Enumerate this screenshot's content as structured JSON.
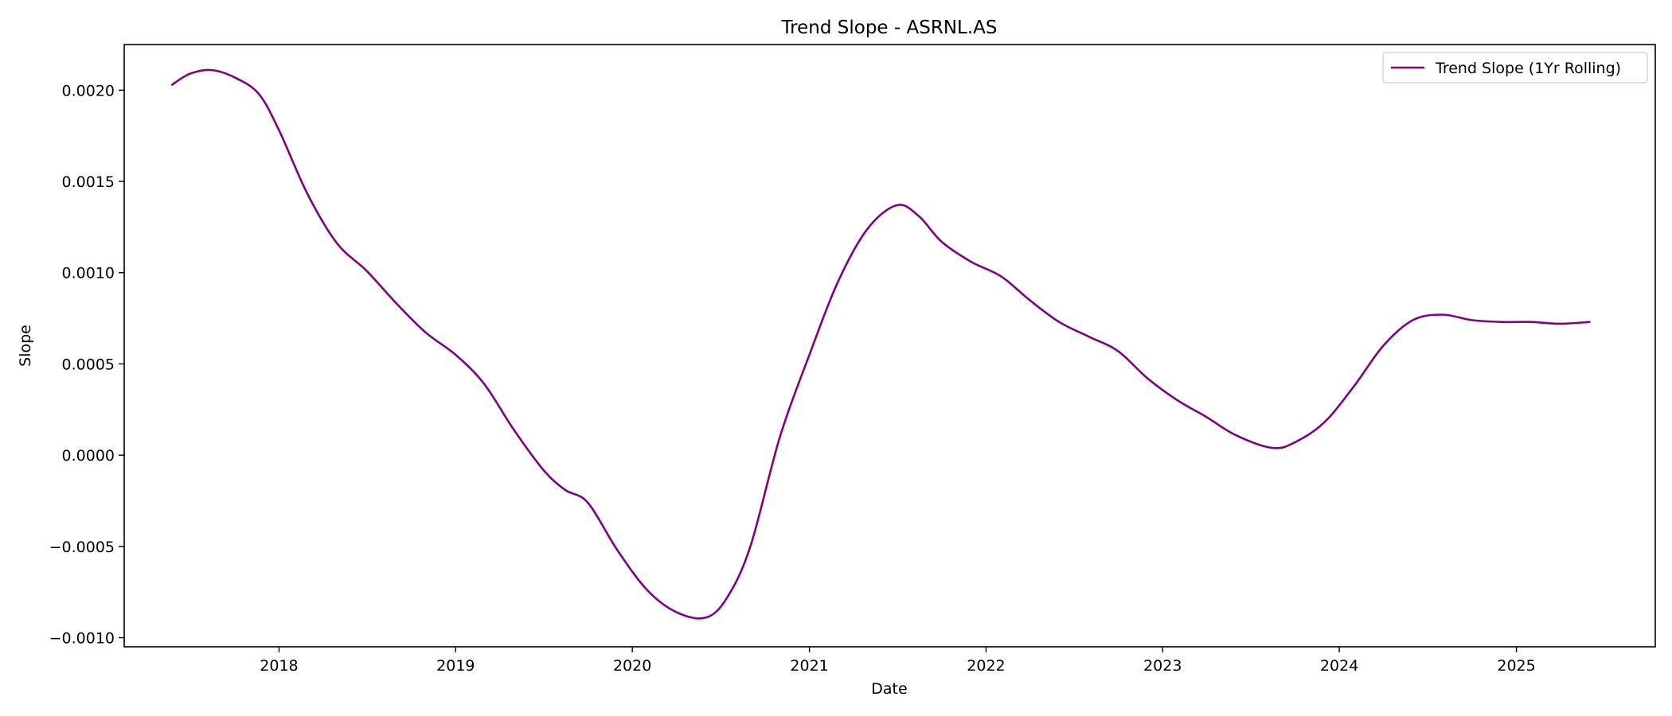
{
  "chart_data": {
    "type": "line",
    "title": "Trend Slope - ASRNL.AS",
    "xlabel": "Date",
    "ylabel": "Slope",
    "x_type": "date",
    "xlim": [
      "2017-02-15",
      "2025-10-15"
    ],
    "ylim": [
      -0.00105,
      0.00225
    ],
    "x_ticks": [
      "2018",
      "2019",
      "2020",
      "2021",
      "2022",
      "2023",
      "2024",
      "2025"
    ],
    "y_ticks": [
      "0.0020",
      "0.0015",
      "0.0010",
      "0.0005",
      "0.0000",
      "−0.0005",
      "−0.0010"
    ],
    "y_tick_values": [
      0.002,
      0.0015,
      0.001,
      0.0005,
      0.0,
      -0.0005,
      -0.001
    ],
    "grid": false,
    "legend_position": "top-right",
    "series": [
      {
        "name": "Trend Slope (1Yr Rolling)",
        "color": "#800080",
        "points": [
          [
            "2017-05-25",
            0.00203
          ],
          [
            "2017-07-01",
            0.00209
          ],
          [
            "2017-08-15",
            0.00211
          ],
          [
            "2017-10-01",
            0.00207
          ],
          [
            "2017-11-20",
            0.00198
          ],
          [
            "2018-01-01",
            0.00178
          ],
          [
            "2018-03-01",
            0.00143
          ],
          [
            "2018-05-01",
            0.00116
          ],
          [
            "2018-07-01",
            0.00101
          ],
          [
            "2018-09-01",
            0.00083
          ],
          [
            "2018-11-01",
            0.00067
          ],
          [
            "2019-01-01",
            0.00055
          ],
          [
            "2019-03-01",
            0.00039
          ],
          [
            "2019-05-01",
            0.00014
          ],
          [
            "2019-07-01",
            -8e-05
          ],
          [
            "2019-08-15",
            -0.00019
          ],
          [
            "2019-10-01",
            -0.00026
          ],
          [
            "2019-12-01",
            -0.00052
          ],
          [
            "2020-02-01",
            -0.00074
          ],
          [
            "2020-04-01",
            -0.00086
          ],
          [
            "2020-06-01",
            -0.00089
          ],
          [
            "2020-07-15",
            -0.00078
          ],
          [
            "2020-09-01",
            -0.0005
          ],
          [
            "2020-11-01",
            0.0001
          ],
          [
            "2021-01-01",
            0.00055
          ],
          [
            "2021-03-01",
            0.00095
          ],
          [
            "2021-05-01",
            0.00124
          ],
          [
            "2021-07-01",
            0.00137
          ],
          [
            "2021-08-15",
            0.00131
          ],
          [
            "2021-10-01",
            0.00117
          ],
          [
            "2021-12-01",
            0.00106
          ],
          [
            "2022-02-01",
            0.00098
          ],
          [
            "2022-04-01",
            0.00085
          ],
          [
            "2022-06-01",
            0.00073
          ],
          [
            "2022-08-01",
            0.00065
          ],
          [
            "2022-10-01",
            0.00057
          ],
          [
            "2022-12-01",
            0.00042
          ],
          [
            "2023-02-01",
            0.0003
          ],
          [
            "2023-04-01",
            0.00021
          ],
          [
            "2023-06-01",
            0.00011
          ],
          [
            "2023-08-15",
            4e-05
          ],
          [
            "2023-10-01",
            7e-05
          ],
          [
            "2023-12-01",
            0.00018
          ],
          [
            "2024-02-01",
            0.00038
          ],
          [
            "2024-04-01",
            0.0006
          ],
          [
            "2024-06-01",
            0.00074
          ],
          [
            "2024-08-01",
            0.00077
          ],
          [
            "2024-10-01",
            0.00074
          ],
          [
            "2024-12-01",
            0.00073
          ],
          [
            "2025-02-01",
            0.00073
          ],
          [
            "2025-04-01",
            0.00072
          ],
          [
            "2025-06-01",
            0.00073
          ]
        ]
      }
    ]
  }
}
